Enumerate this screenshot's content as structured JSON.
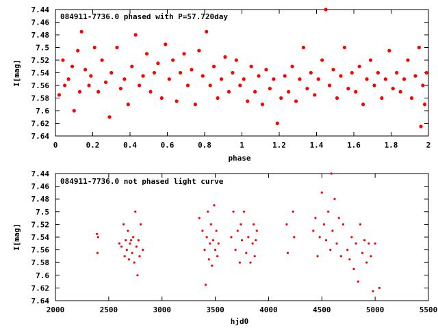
{
  "chart_data": [
    {
      "type": "scatter",
      "title": "084911-7736.0 phased with P=57.720day",
      "xlabel": "phase",
      "ylabel": "I[mag]",
      "xlim": [
        0,
        2
      ],
      "ylim": [
        7.64,
        7.44
      ],
      "y_inverted": true,
      "xticks": [
        "0",
        "0.2",
        "0.4",
        "0.6",
        "0.8",
        "1",
        "1.2",
        "1.4",
        "1.6",
        "1.8",
        "2"
      ],
      "yticks": [
        "7.44",
        "7.46",
        "7.48",
        "7.5",
        "7.52",
        "7.54",
        "7.56",
        "7.58",
        "7.6",
        "7.62",
        "7.64"
      ],
      "marker_color": "#ff0000",
      "series": [
        {
          "points": [
            [
              0.02,
              7.575
            ],
            [
              0.04,
              7.52
            ],
            [
              0.05,
              7.56
            ],
            [
              0.07,
              7.55
            ],
            [
              0.09,
              7.53
            ],
            [
              0.1,
              7.6
            ],
            [
              0.12,
              7.505
            ],
            [
              0.13,
              7.57
            ],
            [
              0.14,
              7.475
            ],
            [
              0.16,
              7.535
            ],
            [
              0.18,
              7.56
            ],
            [
              0.19,
              7.545
            ],
            [
              0.21,
              7.5
            ],
            [
              0.23,
              7.57
            ],
            [
              0.25,
              7.52
            ],
            [
              0.27,
              7.555
            ],
            [
              0.29,
              7.61
            ],
            [
              0.3,
              7.54
            ],
            [
              0.33,
              7.5
            ],
            [
              0.35,
              7.565
            ],
            [
              0.37,
              7.55
            ],
            [
              0.39,
              7.59
            ],
            [
              0.41,
              7.53
            ],
            [
              0.43,
              7.48
            ],
            [
              0.45,
              7.56
            ],
            [
              0.47,
              7.545
            ],
            [
              0.49,
              7.51
            ],
            [
              0.51,
              7.57
            ],
            [
              0.53,
              7.54
            ],
            [
              0.55,
              7.525
            ],
            [
              0.57,
              7.58
            ],
            [
              0.59,
              7.495
            ],
            [
              0.61,
              7.55
            ],
            [
              0.63,
              7.52
            ],
            [
              0.65,
              7.585
            ],
            [
              0.67,
              7.54
            ],
            [
              0.69,
              7.51
            ],
            [
              0.71,
              7.56
            ],
            [
              0.73,
              7.535
            ],
            [
              0.75,
              7.59
            ],
            [
              0.77,
              7.505
            ],
            [
              0.79,
              7.545
            ],
            [
              0.81,
              7.475
            ],
            [
              0.83,
              7.56
            ],
            [
              0.85,
              7.53
            ],
            [
              0.87,
              7.58
            ],
            [
              0.89,
              7.55
            ],
            [
              0.91,
              7.515
            ],
            [
              0.93,
              7.57
            ],
            [
              0.95,
              7.54
            ],
            [
              0.97,
              7.52
            ],
            [
              0.99,
              7.56
            ],
            [
              1.01,
              7.55
            ],
            [
              1.03,
              7.585
            ],
            [
              1.05,
              7.53
            ],
            [
              1.07,
              7.57
            ],
            [
              1.09,
              7.545
            ],
            [
              1.11,
              7.59
            ],
            [
              1.13,
              7.535
            ],
            [
              1.15,
              7.565
            ],
            [
              1.17,
              7.55
            ],
            [
              1.19,
              7.62
            ],
            [
              1.21,
              7.58
            ],
            [
              1.23,
              7.545
            ],
            [
              1.25,
              7.57
            ],
            [
              1.27,
              7.53
            ],
            [
              1.29,
              7.585
            ],
            [
              1.31,
              7.55
            ],
            [
              1.33,
              7.5
            ],
            [
              1.35,
              7.565
            ],
            [
              1.37,
              7.54
            ],
            [
              1.39,
              7.575
            ],
            [
              1.41,
              7.55
            ],
            [
              1.43,
              7.52
            ],
            [
              1.45,
              7.44
            ],
            [
              1.47,
              7.56
            ],
            [
              1.49,
              7.535
            ],
            [
              1.51,
              7.58
            ],
            [
              1.53,
              7.545
            ],
            [
              1.55,
              7.5
            ],
            [
              1.57,
              7.565
            ],
            [
              1.59,
              7.54
            ],
            [
              1.61,
              7.57
            ],
            [
              1.63,
              7.53
            ],
            [
              1.65,
              7.59
            ],
            [
              1.67,
              7.55
            ],
            [
              1.69,
              7.52
            ],
            [
              1.71,
              7.56
            ],
            [
              1.73,
              7.54
            ],
            [
              1.75,
              7.58
            ],
            [
              1.77,
              7.55
            ],
            [
              1.79,
              7.505
            ],
            [
              1.81,
              7.565
            ],
            [
              1.83,
              7.54
            ],
            [
              1.85,
              7.57
            ],
            [
              1.87,
              7.55
            ],
            [
              1.89,
              7.52
            ],
            [
              1.91,
              7.58
            ],
            [
              1.93,
              7.545
            ],
            [
              1.95,
              7.5
            ],
            [
              1.96,
              7.625
            ],
            [
              1.97,
              7.56
            ],
            [
              1.98,
              7.59
            ],
            [
              1.99,
              7.54
            ]
          ]
        }
      ]
    },
    {
      "type": "scatter",
      "title": "084911-7736.0 not phased light curve",
      "xlabel": "hjd0",
      "ylabel": "I[mag]",
      "xlim": [
        2000,
        5500
      ],
      "ylim": [
        7.64,
        7.44
      ],
      "y_inverted": true,
      "xticks": [
        "2000",
        "2500",
        "3000",
        "3500",
        "4000",
        "4500",
        "5000",
        "5500"
      ],
      "yticks": [
        "7.44",
        "7.46",
        "7.48",
        "7.5",
        "7.52",
        "7.54",
        "7.56",
        "7.58",
        "7.6",
        "7.62",
        "7.64"
      ],
      "marker_color": "#ff0000",
      "series": [
        {
          "points": [
            [
              2390,
              7.535
            ],
            [
              2395,
              7.565
            ],
            [
              2400,
              7.54
            ],
            [
              2600,
              7.55
            ],
            [
              2620,
              7.555
            ],
            [
              2640,
              7.52
            ],
            [
              2650,
              7.57
            ],
            [
              2660,
              7.545
            ],
            [
              2670,
              7.56
            ],
            [
              2680,
              7.53
            ],
            [
              2690,
              7.575
            ],
            [
              2700,
              7.55
            ],
            [
              2710,
              7.545
            ],
            [
              2720,
              7.565
            ],
            [
              2730,
              7.54
            ],
            [
              2740,
              7.58
            ],
            [
              2750,
              7.5
            ],
            [
              2760,
              7.555
            ],
            [
              2770,
              7.6
            ],
            [
              2780,
              7.545
            ],
            [
              2790,
              7.57
            ],
            [
              2800,
              7.52
            ],
            [
              2820,
              7.56
            ],
            [
              3350,
              7.51
            ],
            [
              3380,
              7.53
            ],
            [
              3400,
              7.56
            ],
            [
              3410,
              7.615
            ],
            [
              3420,
              7.54
            ],
            [
              3430,
              7.5
            ],
            [
              3440,
              7.575
            ],
            [
              3450,
              7.55
            ],
            [
              3460,
              7.52
            ],
            [
              3470,
              7.585
            ],
            [
              3480,
              7.545
            ],
            [
              3490,
              7.49
            ],
            [
              3500,
              7.56
            ],
            [
              3510,
              7.53
            ],
            [
              3520,
              7.57
            ],
            [
              3530,
              7.55
            ],
            [
              3650,
              7.54
            ],
            [
              3670,
              7.5
            ],
            [
              3690,
              7.56
            ],
            [
              3710,
              7.53
            ],
            [
              3730,
              7.58
            ],
            [
              3740,
              7.52
            ],
            [
              3750,
              7.545
            ],
            [
              3770,
              7.5
            ],
            [
              3790,
              7.565
            ],
            [
              3810,
              7.54
            ],
            [
              3830,
              7.58
            ],
            [
              3850,
              7.55
            ],
            [
              3860,
              7.52
            ],
            [
              3870,
              7.57
            ],
            [
              3880,
              7.545
            ],
            [
              3890,
              7.53
            ],
            [
              4170,
              7.52
            ],
            [
              4180,
              7.565
            ],
            [
              4230,
              7.5
            ],
            [
              4240,
              7.54
            ],
            [
              4420,
              7.53
            ],
            [
              4440,
              7.51
            ],
            [
              4460,
              7.57
            ],
            [
              4480,
              7.54
            ],
            [
              4500,
              7.47
            ],
            [
              4520,
              7.52
            ],
            [
              4540,
              7.545
            ],
            [
              4560,
              7.5
            ],
            [
              4580,
              7.56
            ],
            [
              4590,
              7.44
            ],
            [
              4600,
              7.53
            ],
            [
              4620,
              7.48
            ],
            [
              4640,
              7.55
            ],
            [
              4660,
              7.51
            ],
            [
              4680,
              7.57
            ],
            [
              4700,
              7.52
            ],
            [
              4740,
              7.56
            ],
            [
              4760,
              7.575
            ],
            [
              4780,
              7.54
            ],
            [
              4800,
              7.59
            ],
            [
              4820,
              7.55
            ],
            [
              4840,
              7.61
            ],
            [
              4860,
              7.52
            ],
            [
              4880,
              7.565
            ],
            [
              4900,
              7.545
            ],
            [
              4920,
              7.58
            ],
            [
              4940,
              7.55
            ],
            [
              4960,
              7.57
            ],
            [
              4980,
              7.625
            ],
            [
              5000,
              7.55
            ],
            [
              5040,
              7.62
            ]
          ]
        }
      ]
    }
  ]
}
